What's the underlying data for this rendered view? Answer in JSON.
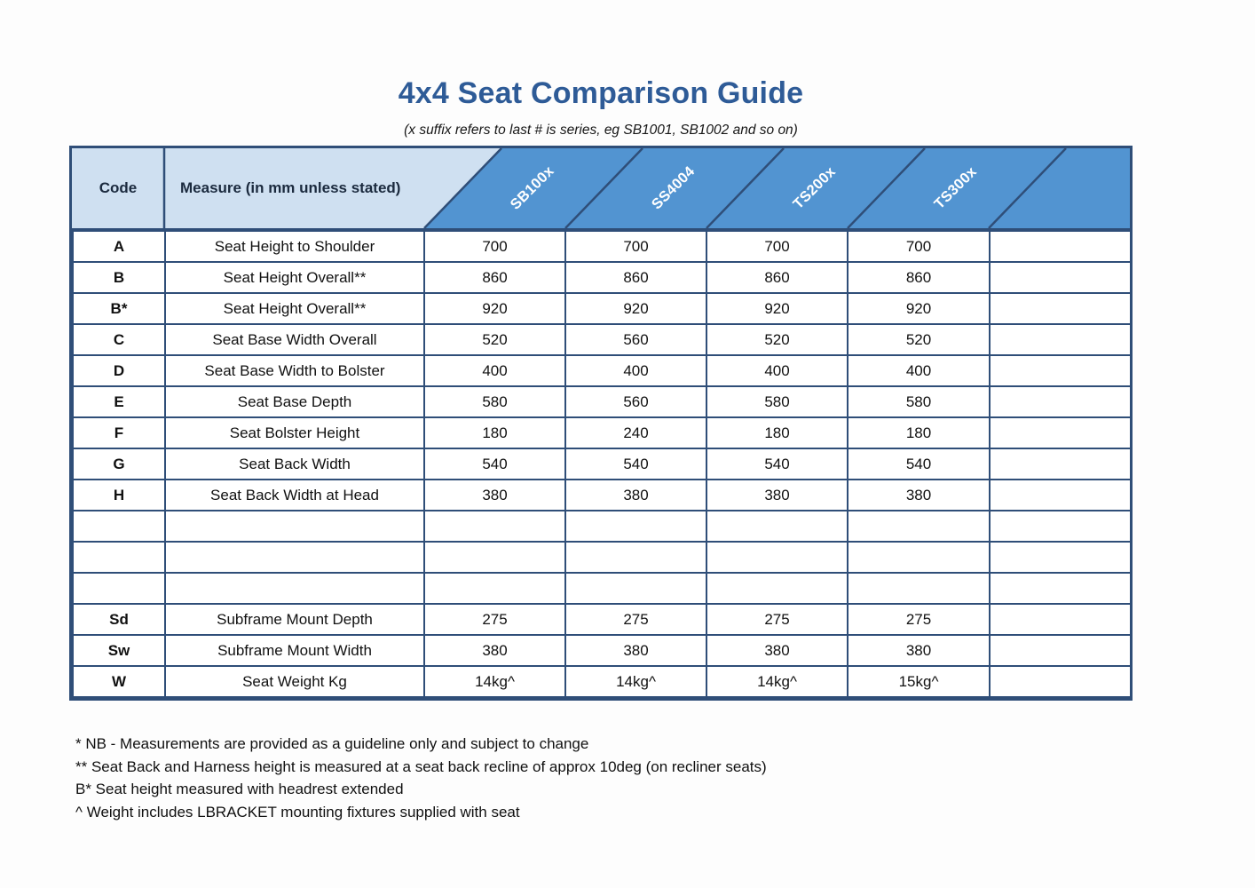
{
  "title": "4x4 Seat Comparison Guide",
  "subtitle": "(x suffix refers to last # is series, eg SB1001, SB1002 and so on)",
  "table": {
    "code_header": "Code",
    "measure_header": "Measure (in mm unless stated)",
    "products": [
      "SB100x",
      "SS4004",
      "TS200x",
      "TS300x"
    ],
    "rows": [
      {
        "code": "A",
        "measure": "Seat Height to Shoulder",
        "values": [
          "700",
          "700",
          "700",
          "700"
        ]
      },
      {
        "code": "B",
        "measure": "Seat Height Overall**",
        "values": [
          "860",
          "860",
          "860",
          "860"
        ]
      },
      {
        "code": "B*",
        "measure": "Seat Height Overall**",
        "values": [
          "920",
          "920",
          "920",
          "920"
        ]
      },
      {
        "code": "C",
        "measure": "Seat Base Width Overall",
        "values": [
          "520",
          "560",
          "520",
          "520"
        ]
      },
      {
        "code": "D",
        "measure": "Seat Base Width to Bolster",
        "values": [
          "400",
          "400",
          "400",
          "400"
        ]
      },
      {
        "code": "E",
        "measure": "Seat Base Depth",
        "values": [
          "580",
          "560",
          "580",
          "580"
        ]
      },
      {
        "code": "F",
        "measure": "Seat Bolster Height",
        "values": [
          "180",
          "240",
          "180",
          "180"
        ]
      },
      {
        "code": "G",
        "measure": "Seat Back Width",
        "values": [
          "540",
          "540",
          "540",
          "540"
        ]
      },
      {
        "code": "H",
        "measure": "Seat Back Width at Head",
        "values": [
          "380",
          "380",
          "380",
          "380"
        ]
      },
      {
        "code": "",
        "measure": "",
        "values": [
          "",
          "",
          "",
          ""
        ]
      },
      {
        "code": "",
        "measure": "",
        "values": [
          "",
          "",
          "",
          ""
        ]
      },
      {
        "code": "",
        "measure": "",
        "values": [
          "",
          "",
          "",
          ""
        ]
      },
      {
        "code": "Sd",
        "measure": "Subframe Mount Depth",
        "values": [
          "275",
          "275",
          "275",
          "275"
        ]
      },
      {
        "code": "Sw",
        "measure": "Subframe Mount Width",
        "values": [
          "380",
          "380",
          "380",
          "380"
        ]
      },
      {
        "code": "W",
        "measure": "Seat Weight Kg",
        "values": [
          "14kg^",
          "14kg^",
          "14kg^",
          "15kg^"
        ]
      }
    ]
  },
  "footnotes": [
    "* NB - Measurements are provided as a guideline only and subject to change",
    "** Seat Back and Harness height is measured at a seat back recline of approx 10deg (on recliner seats)",
    "B* Seat height measured with headrest extended",
    "^ Weight includes LBRACKET mounting fixtures supplied with seat"
  ],
  "colors": {
    "title_blue": "#2e5b97",
    "header_light_blue": "#cfe0f1",
    "header_dark_blue": "#5294d1",
    "border_navy": "#2f4e78",
    "header_text_navy": "#1b2a3e"
  }
}
